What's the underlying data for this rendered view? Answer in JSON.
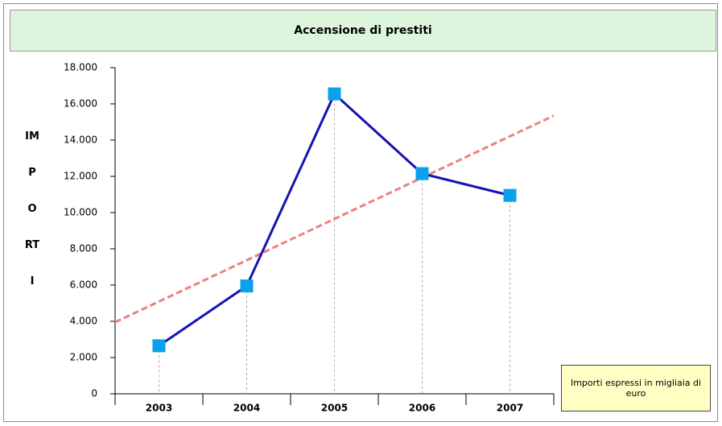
{
  "chart_data": {
    "type": "line",
    "title": "Accensione di prestiti",
    "y_label": "IMPORTI",
    "note": "Importi espressi in migliaia di euro",
    "categories": [
      "2003",
      "2004",
      "2005",
      "2006",
      "2007"
    ],
    "values": [
      2650,
      5950,
      16550,
      12150,
      10950
    ],
    "color": "#1414b4",
    "marker_color": "#0aa0ec",
    "trend_color": "#f08080",
    "trend_line": true,
    "ylim": [
      0,
      18000
    ],
    "yticks": [
      0,
      {
        "value": 2000,
        "label": "2.000"
      },
      {
        "value": 4000,
        "label": "4.000"
      },
      {
        "value": 6000,
        "label": "6.000"
      },
      {
        "value": 8000,
        "label": "8.000"
      },
      {
        "value": 10000,
        "label": "10.000"
      },
      {
        "value": 12000,
        "label": "12.000"
      },
      {
        "value": 14000,
        "label": "14.000"
      },
      {
        "value": 16000,
        "label": "16.000"
      },
      {
        "value": 18000,
        "label": "18.000"
      }
    ]
  }
}
